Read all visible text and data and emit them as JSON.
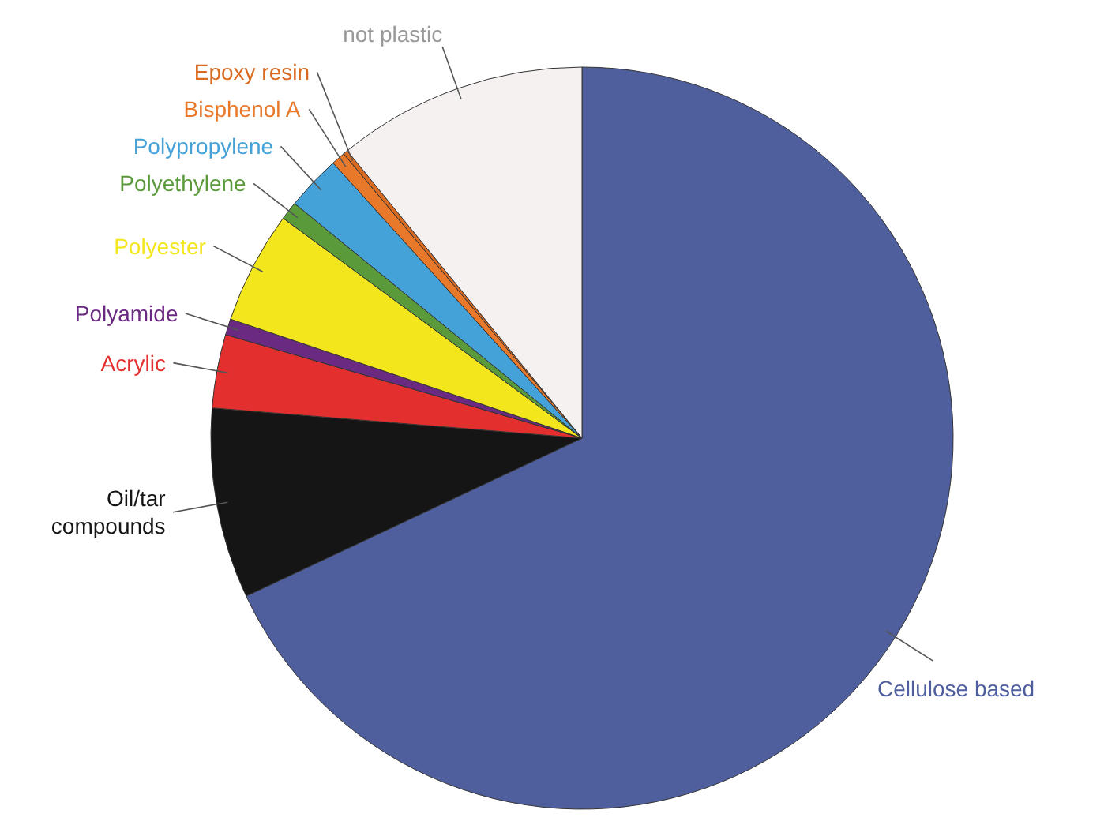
{
  "chart_data": {
    "type": "pie",
    "categories": [
      "Cellulose based",
      "Oil/tar\ncompounds",
      "Acrylic",
      "Polyamide",
      "Polyester",
      "Polyethylene",
      "Polypropylene",
      "Bisphenol A",
      "Epoxy resin",
      "not plastic"
    ],
    "values": [
      68,
      8.3,
      3.2,
      0.7,
      4.9,
      0.8,
      2.4,
      0.6,
      0.2,
      10.9
    ],
    "colors": [
      "#4f5f9e",
      "#151515",
      "#e3302e",
      "#6b2a82",
      "#f4e61c",
      "#5a9a3a",
      "#44a2d8",
      "#e8782a",
      "#d96a20",
      "#f5f1f1"
    ]
  }
}
